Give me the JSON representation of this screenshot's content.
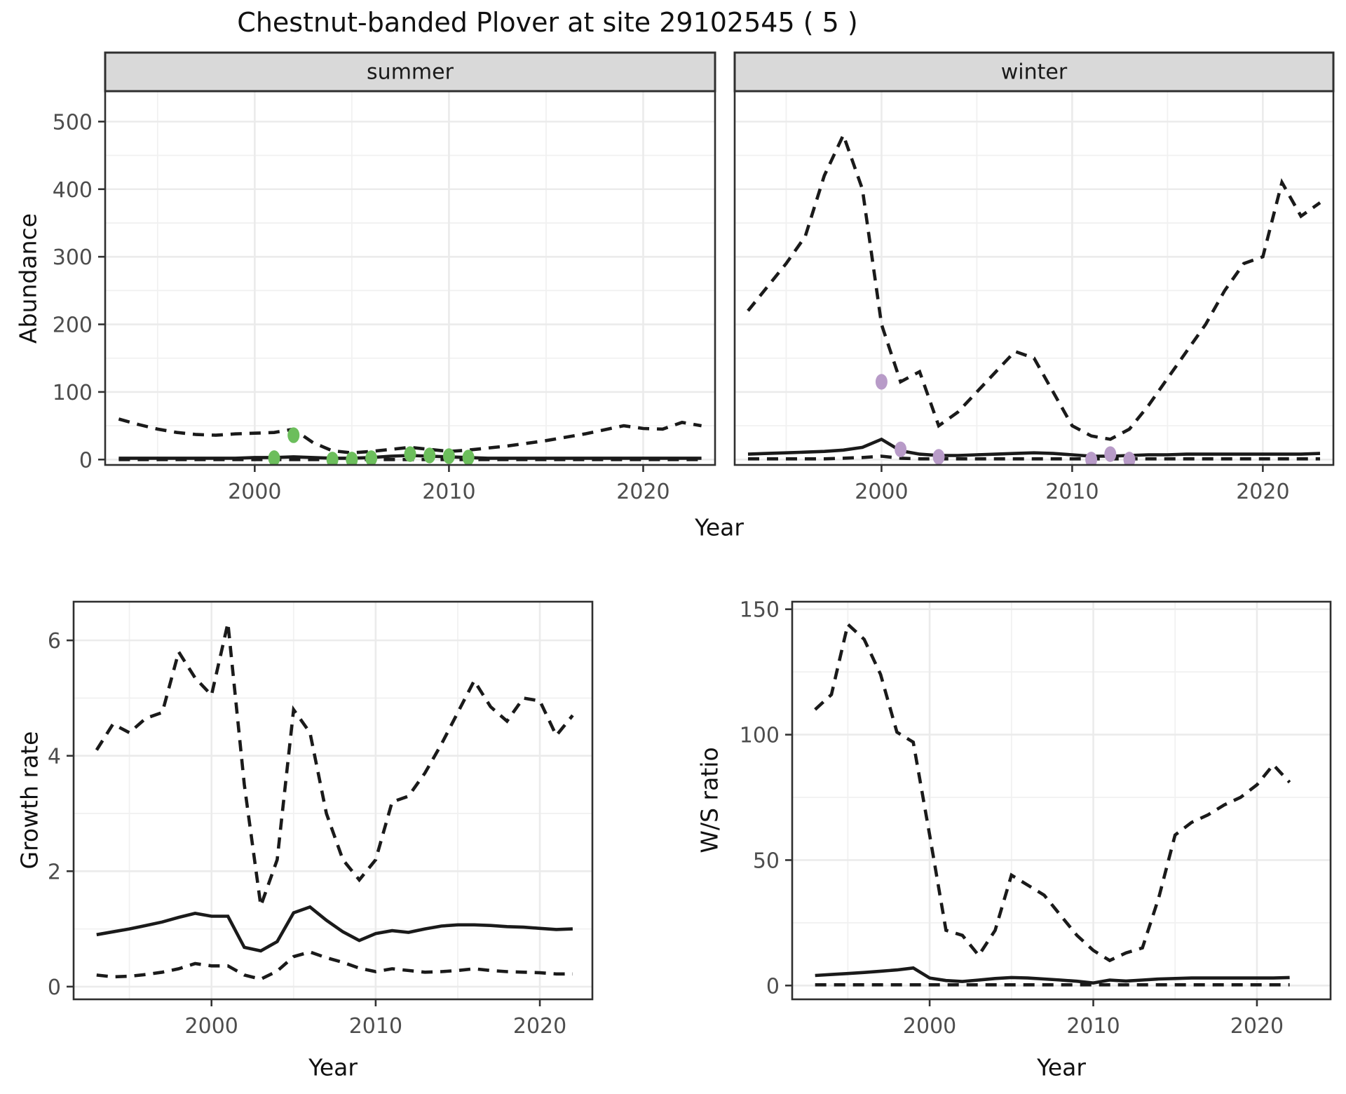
{
  "title": "Chestnut-banded Plover at site 29102545 ( 5 )",
  "facets": [
    {
      "label": "summer"
    },
    {
      "label": "winter"
    }
  ],
  "axis_labels": {
    "abundance": "Abundance",
    "growth": "Growth rate",
    "ws": "W/S ratio",
    "year": "Year"
  },
  "colors": {
    "line": "#1a1a1a",
    "summer_points": "#6cbe5c",
    "winter_points": "#b89bc8",
    "grid_major": "#ebebeb",
    "grid_minor": "#f1f1f1",
    "strip_bg": "#d9d9d9",
    "panel_border": "#2f2f2f",
    "axis_text": "#4d4d4d",
    "panel_bg": "#ffffff"
  },
  "chart_data": {
    "type": "line",
    "title": "Chestnut-banded Plover at site 29102545 ( 5 )",
    "legend": "none",
    "panels": [
      {
        "id": "abundance-summer",
        "facet": "summer",
        "ylabel": "Abundance",
        "xlabel": "Year",
        "years": {
          "start": 1993,
          "end": 2023
        },
        "xlim": [
          1992.3,
          2023.7
        ],
        "ylim": [
          -8,
          545
        ],
        "xticks": [
          2000,
          2010,
          2020
        ],
        "xminor": [
          1995,
          2005,
          2015
        ],
        "yticks": [
          0,
          100,
          200,
          300,
          400,
          500
        ],
        "yminor": [
          50,
          150,
          250,
          350,
          450
        ],
        "show_y_labels": true,
        "series": [
          {
            "name": "upper-ci",
            "style": "dashed",
            "values": [
              60,
              52,
              45,
              40,
              37,
              36,
              38,
              39,
              40,
              45,
              25,
              13,
              10,
              12,
              15,
              18,
              15,
              12,
              14,
              17,
              20,
              24,
              28,
              33,
              38,
              44,
              50,
              46,
              45,
              55,
              50
            ]
          },
          {
            "name": "median",
            "style": "solid",
            "values": [
              2,
              2,
              2,
              2,
              2,
              2,
              2,
              3,
              3,
              4,
              3,
              2,
              2,
              3,
              5,
              6,
              5,
              4,
              3,
              2,
              2,
              2,
              2,
              2,
              2,
              2,
              2,
              2,
              2,
              2,
              2
            ]
          },
          {
            "name": "lower-ci",
            "style": "dashed",
            "values": [
              0,
              0,
              0,
              0,
              0,
              0,
              0,
              0,
              0,
              0,
              0,
              0,
              0,
              0,
              0,
              0,
              0,
              0,
              0,
              0,
              0,
              0,
              0,
              0,
              0,
              0,
              0,
              0,
              0,
              0,
              0
            ]
          }
        ],
        "points": {
          "name": "observed-summer",
          "color_key": "summer_points",
          "data": [
            [
              2001,
              2
            ],
            [
              2002,
              36
            ],
            [
              2004,
              0
            ],
            [
              2005,
              0
            ],
            [
              2006,
              2
            ],
            [
              2008,
              8
            ],
            [
              2009,
              6
            ],
            [
              2010,
              5
            ],
            [
              2011,
              3
            ]
          ]
        }
      },
      {
        "id": "abundance-winter",
        "facet": "winter",
        "ylabel": "Abundance",
        "xlabel": "Year",
        "years": {
          "start": 1993,
          "end": 2023
        },
        "xlim": [
          1992.3,
          2023.7
        ],
        "ylim": [
          -8,
          545
        ],
        "xticks": [
          2000,
          2010,
          2020
        ],
        "xminor": [
          1995,
          2005,
          2015
        ],
        "yticks": [
          0,
          100,
          200,
          300,
          400,
          500
        ],
        "yminor": [
          50,
          150,
          250,
          350,
          450
        ],
        "show_y_labels": false,
        "series": [
          {
            "name": "upper-ci",
            "style": "dashed",
            "values": [
              220,
              255,
              290,
              330,
              420,
              480,
              400,
              200,
              115,
              130,
              50,
              70,
              100,
              130,
              160,
              150,
              100,
              50,
              35,
              30,
              45,
              80,
              120,
              160,
              200,
              250,
              290,
              300,
              410,
              360,
              380
            ]
          },
          {
            "name": "median",
            "style": "solid",
            "values": [
              8,
              9,
              10,
              11,
              12,
              14,
              18,
              30,
              13,
              8,
              6,
              6,
              7,
              8,
              9,
              10,
              9,
              7,
              5,
              5,
              6,
              7,
              7,
              8,
              8,
              8,
              8,
              8,
              8,
              8,
              9
            ]
          },
          {
            "name": "lower-ci",
            "style": "dashed",
            "values": [
              1,
              1,
              1,
              1,
              1,
              2,
              3,
              5,
              2,
              1,
              1,
              1,
              1,
              1,
              1,
              1,
              1,
              1,
              1,
              1,
              1,
              1,
              1,
              1,
              1,
              1,
              1,
              1,
              1,
              1,
              1
            ]
          }
        ],
        "points": {
          "name": "observed-winter",
          "color_key": "winter_points",
          "data": [
            [
              2000,
              115
            ],
            [
              2001,
              15
            ],
            [
              2003,
              4
            ],
            [
              2011,
              0
            ],
            [
              2012,
              8
            ],
            [
              2013,
              0
            ]
          ]
        }
      },
      {
        "id": "growth-rate",
        "facet": null,
        "ylabel": "Growth rate",
        "xlabel": "Year",
        "years": {
          "start": 1993,
          "end": 2022
        },
        "xlim": [
          1991.6,
          2023.2
        ],
        "ylim": [
          -0.22,
          6.67
        ],
        "xticks": [
          2000,
          2010,
          2020
        ],
        "xminor": [
          1995,
          2005,
          2015
        ],
        "yticks": [
          0,
          2,
          4,
          6
        ],
        "yminor": [
          1,
          3,
          5
        ],
        "show_y_labels": true,
        "series": [
          {
            "name": "upper-ci",
            "style": "dashed",
            "values": [
              4.1,
              4.55,
              4.4,
              4.65,
              4.75,
              5.8,
              5.35,
              5.05,
              6.3,
              3.5,
              1.4,
              2.2,
              4.8,
              4.4,
              3.0,
              2.2,
              1.85,
              2.2,
              3.2,
              3.3,
              3.7,
              4.2,
              4.75,
              5.3,
              4.85,
              4.6,
              5.0,
              4.95,
              4.35,
              4.7
            ]
          },
          {
            "name": "median",
            "style": "solid",
            "values": [
              0.9,
              0.95,
              1.0,
              1.06,
              1.12,
              1.2,
              1.27,
              1.22,
              1.22,
              0.68,
              0.62,
              0.78,
              1.28,
              1.38,
              1.15,
              0.95,
              0.8,
              0.92,
              0.97,
              0.94,
              1.0,
              1.05,
              1.07,
              1.07,
              1.06,
              1.04,
              1.03,
              1.01,
              0.99,
              1.0
            ]
          },
          {
            "name": "lower-ci",
            "style": "dashed",
            "values": [
              0.2,
              0.17,
              0.18,
              0.21,
              0.25,
              0.31,
              0.4,
              0.36,
              0.36,
              0.2,
              0.13,
              0.27,
              0.52,
              0.6,
              0.5,
              0.42,
              0.32,
              0.26,
              0.31,
              0.28,
              0.25,
              0.26,
              0.28,
              0.31,
              0.28,
              0.26,
              0.25,
              0.24,
              0.22,
              0.22
            ]
          }
        ],
        "points": null
      },
      {
        "id": "ws-ratio",
        "facet": null,
        "ylabel": "W/S ratio",
        "xlabel": "Year",
        "years": {
          "start": 1993,
          "end": 2022
        },
        "xlim": [
          1991.6,
          2024.5
        ],
        "ylim": [
          -5.5,
          153
        ],
        "xticks": [
          2000,
          2010,
          2020
        ],
        "xminor": [
          1995,
          2005,
          2015
        ],
        "yticks": [
          0,
          50,
          100,
          150
        ],
        "yminor": [
          25,
          75,
          125
        ],
        "show_y_labels": true,
        "series": [
          {
            "name": "upper-ci",
            "style": "dashed",
            "values": [
              110,
              116,
              144,
              138,
              124,
              101,
              97,
              60,
              22,
              20,
              12,
              22,
              44,
              40,
              36,
              28,
              20,
              14,
              10,
              13,
              15,
              35,
              60,
              65,
              68,
              72,
              75,
              80,
              88,
              81
            ]
          },
          {
            "name": "median",
            "style": "solid",
            "values": [
              4,
              4.4,
              4.8,
              5.2,
              5.7,
              6.2,
              7,
              3,
              2,
              1.6,
              2.2,
              2.8,
              3.2,
              3,
              2.6,
              2.2,
              1.7,
              1,
              2.2,
              1.8,
              2.2,
              2.6,
              2.8,
              3,
              3,
              3,
              3,
              3,
              3,
              3.2
            ]
          },
          {
            "name": "lower-ci",
            "style": "dashed",
            "values": [
              0.3,
              0.3,
              0.3,
              0.3,
              0.3,
              0.3,
              0.3,
              0.3,
              0.3,
              0.3,
              0.3,
              0.3,
              0.3,
              0.3,
              0.3,
              0.3,
              0.3,
              0.3,
              0.3,
              0.3,
              0.3,
              0.3,
              0.3,
              0.3,
              0.3,
              0.3,
              0.3,
              0.3,
              0.3,
              0.3
            ]
          }
        ],
        "points": null
      }
    ]
  }
}
